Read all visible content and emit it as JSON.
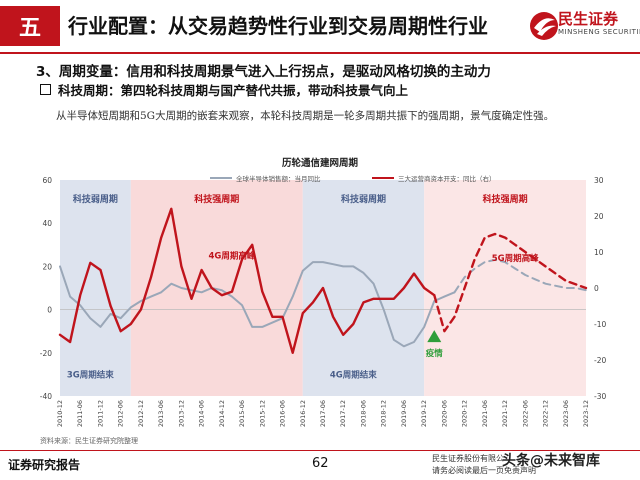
{
  "header": {
    "section_number": "五",
    "title": "行业配置：从交易趋势性行业到交易周期性行业",
    "logo_cn": "民生证券",
    "logo_en": "MINSHENG SECURITIES"
  },
  "subhead": "3、周期变量：信用和科技周期景气进入上行拐点，是驱动风格切换的主动力",
  "bullet": "科技周期：第四轮科技周期与国产替代共振，带动科技景气向上",
  "body_text": "从半导体短周期和5G大周期的嵌套来观察，本轮科技周期是一轮多周期共振下的强周期，景气度确定性强。",
  "source": "资料来源：民生证券研究院整理",
  "footer": {
    "left": "证券研究报告",
    "page": "62",
    "right1": "民生证券股份有限公",
    "right2": "请务必阅读最后一页免责声明",
    "watermark": "头条@未来智库"
  },
  "chart_data": {
    "type": "line",
    "title": "历轮通信建网周期",
    "x": [
      "2010-12",
      "2011-03",
      "2011-06",
      "2011-09",
      "2011-12",
      "2012-03",
      "2012-06",
      "2012-09",
      "2012-12",
      "2013-03",
      "2013-06",
      "2013-09",
      "2013-12",
      "2014-03",
      "2014-06",
      "2014-09",
      "2014-12",
      "2015-03",
      "2015-06",
      "2015-09",
      "2015-12",
      "2016-03",
      "2016-06",
      "2016-09",
      "2016-12",
      "2017-03",
      "2017-06",
      "2017-09",
      "2017-12",
      "2018-03",
      "2018-06",
      "2018-09",
      "2018-12",
      "2019-03",
      "2019-06",
      "2019-09",
      "2019-12",
      "2020-03",
      "2020-06",
      "2020-09",
      "2020-12",
      "2021-03",
      "2021-06",
      "2021-09",
      "2021-12",
      "2022-03",
      "2022-06",
      "2022-09",
      "2022-12",
      "2023-03",
      "2023-06",
      "2023-09",
      "2023-12"
    ],
    "x_tick_labels": [
      "2010-12",
      "2011-06",
      "2011-12",
      "2012-06",
      "2012-12",
      "2013-06",
      "2013-12",
      "2014-06",
      "2014-12",
      "2015-06",
      "2015-12",
      "2016-06",
      "2016-12",
      "2017-06",
      "2017-12",
      "2018-06",
      "2018-12",
      "2019-06",
      "2019-12",
      "2020-06",
      "2020-12",
      "2021-06",
      "2021-12",
      "2022-06",
      "2022-12",
      "2023-06",
      "2023-12"
    ],
    "y_left": {
      "ylim": [
        -40,
        60
      ],
      "ticks": [
        -40,
        -20,
        0,
        20,
        40,
        60
      ]
    },
    "y_right": {
      "ylim": [
        -30,
        30
      ],
      "ticks": [
        -30,
        -20,
        -10,
        0,
        10,
        20,
        30
      ]
    },
    "series": [
      {
        "name": "全球半导体销售额：当月同比",
        "axis": "left",
        "color": "#9aa7b8",
        "values": [
          20,
          6,
          2,
          -4,
          -8,
          -2,
          -4,
          1,
          4,
          6,
          8,
          12,
          10,
          9,
          8,
          10,
          9,
          6,
          2,
          -8,
          -8,
          -6,
          -4,
          6,
          18,
          22,
          22,
          21,
          20,
          20,
          17,
          12,
          0,
          -14,
          -17,
          -15,
          -8,
          4,
          6,
          8,
          null,
          null,
          null,
          null,
          null,
          null,
          null,
          null,
          null,
          null,
          null,
          null,
          null
        ]
      },
      {
        "name": "全球半导体销售额：当月同比（预测）",
        "axis": "left",
        "color": "#9aa7b8",
        "dashed": true,
        "values": [
          null,
          null,
          null,
          null,
          null,
          null,
          null,
          null,
          null,
          null,
          null,
          null,
          null,
          null,
          null,
          null,
          null,
          null,
          null,
          null,
          null,
          null,
          null,
          null,
          null,
          null,
          null,
          null,
          null,
          null,
          null,
          null,
          null,
          null,
          null,
          null,
          null,
          null,
          null,
          8,
          15,
          19,
          22,
          23,
          22,
          19,
          16,
          14,
          12,
          11,
          10,
          10,
          9
        ]
      },
      {
        "name": "三大运营商资本开支：同比（右）",
        "axis": "right",
        "color": "#c0141c",
        "values": [
          -13,
          -15,
          -2,
          7,
          5,
          -5,
          -12,
          -10,
          -6,
          3,
          14,
          22,
          6,
          -3,
          5,
          0,
          -2,
          -1,
          8,
          12,
          -1,
          -8,
          -8,
          -18,
          -7,
          -4,
          0,
          -8,
          -13,
          -10,
          -4,
          -3,
          -3,
          -3,
          0,
          4,
          0,
          -2,
          null,
          null,
          null,
          null,
          null,
          null,
          null,
          null,
          null,
          null,
          null,
          null,
          null,
          null,
          null
        ]
      },
      {
        "name": "三大运营商资本开支：同比（右，预测）",
        "axis": "right",
        "color": "#c0141c",
        "dashed": true,
        "values": [
          null,
          null,
          null,
          null,
          null,
          null,
          null,
          null,
          null,
          null,
          null,
          null,
          null,
          null,
          null,
          null,
          null,
          null,
          null,
          null,
          null,
          null,
          null,
          null,
          null,
          null,
          null,
          null,
          null,
          null,
          null,
          null,
          null,
          null,
          null,
          null,
          null,
          -2,
          -12,
          -8,
          0,
          8,
          14,
          15,
          14,
          12,
          10,
          8,
          6,
          4,
          2,
          1,
          0
        ]
      }
    ],
    "legend": [
      {
        "name": "全球半导体销售额：当月同比",
        "color": "#9aa7b8"
      },
      {
        "name": "三大运营商资本开支：同比（右）",
        "color": "#c0141c"
      }
    ],
    "legend_placement": "top-center",
    "shaded_regions": [
      {
        "from": "2010-12",
        "to": "2012-09",
        "color": "#dde3ee",
        "label": "科技弱周期",
        "label_color": "#4a5f8a"
      },
      {
        "from": "2012-09",
        "to": "2016-12",
        "color": "#f9dada",
        "label": "科技强周期",
        "label_color": "#c0141c"
      },
      {
        "from": "2016-12",
        "to": "2019-12",
        "color": "#dde3ee",
        "label": "科技弱周期",
        "label_color": "#4a5f8a"
      },
      {
        "from": "2019-12",
        "to": "2023-12",
        "color": "#fbe6e6",
        "label": "科技强周期",
        "label_color": "#c0141c"
      }
    ],
    "annotations": [
      {
        "text": "4G周期高峰",
        "x": "2015-03",
        "y_left": 25,
        "color": "#c0141c"
      },
      {
        "text": "3G周期结束",
        "x": "2011-09",
        "y_left": -30,
        "color": "#4a5f8a"
      },
      {
        "text": "4G周期结束",
        "x": "2018-03",
        "y_left": -30,
        "color": "#4a5f8a"
      },
      {
        "text": "5G周期高峰",
        "x": "2022-03",
        "y_left": 24,
        "color": "#c0141c"
      },
      {
        "text": "疫情",
        "x": "2020-03",
        "y_left": -16,
        "color": "#2e9e3a"
      }
    ],
    "grid": false
  }
}
